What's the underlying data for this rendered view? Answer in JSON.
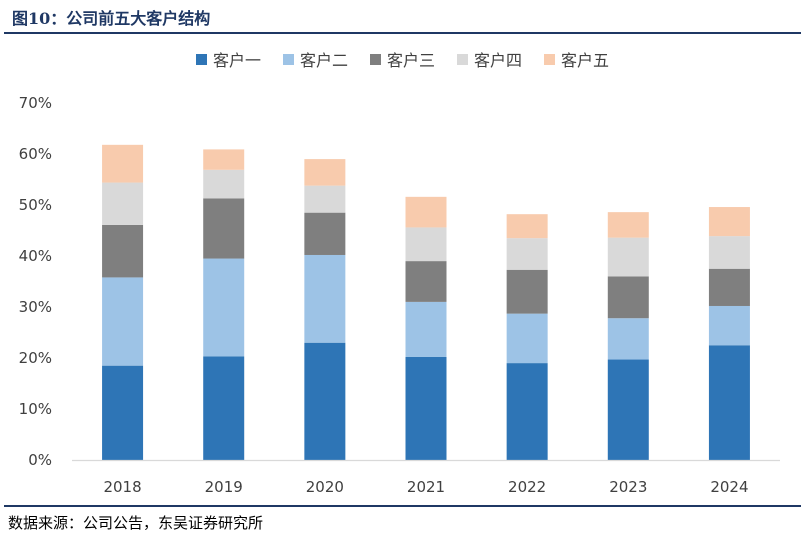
{
  "title": "图10：公司前五大客户结构",
  "source": "数据来源：公司公告，东吴证券研究所",
  "chart_data": {
    "type": "bar",
    "stacked": true,
    "categories": [
      "2018",
      "2019",
      "2020",
      "2021",
      "2022",
      "2023",
      "2024"
    ],
    "series": [
      {
        "name": "客户一",
        "color": "#2e75b6",
        "values": [
          18.5,
          20.3,
          23.0,
          20.2,
          19.0,
          19.7,
          22.5
        ]
      },
      {
        "name": "客户二",
        "color": "#9dc3e6",
        "values": [
          17.3,
          19.2,
          17.2,
          10.8,
          9.7,
          8.1,
          7.7
        ]
      },
      {
        "name": "客户三",
        "color": "#7f7f7f",
        "values": [
          10.3,
          11.8,
          8.3,
          8.0,
          8.6,
          8.2,
          7.3
        ]
      },
      {
        "name": "客户四",
        "color": "#d9d9d9",
        "values": [
          8.3,
          5.6,
          5.3,
          6.6,
          6.2,
          7.6,
          6.4
        ]
      },
      {
        "name": "客户五",
        "color": "#f8cbad",
        "values": [
          7.4,
          4.0,
          5.2,
          6.0,
          4.7,
          5.0,
          5.7
        ]
      }
    ],
    "ylim": [
      0,
      70
    ],
    "yticks": [
      "0%",
      "10%",
      "20%",
      "30%",
      "40%",
      "50%",
      "60%",
      "70%"
    ],
    "grid": false,
    "legend_position": "top"
  }
}
